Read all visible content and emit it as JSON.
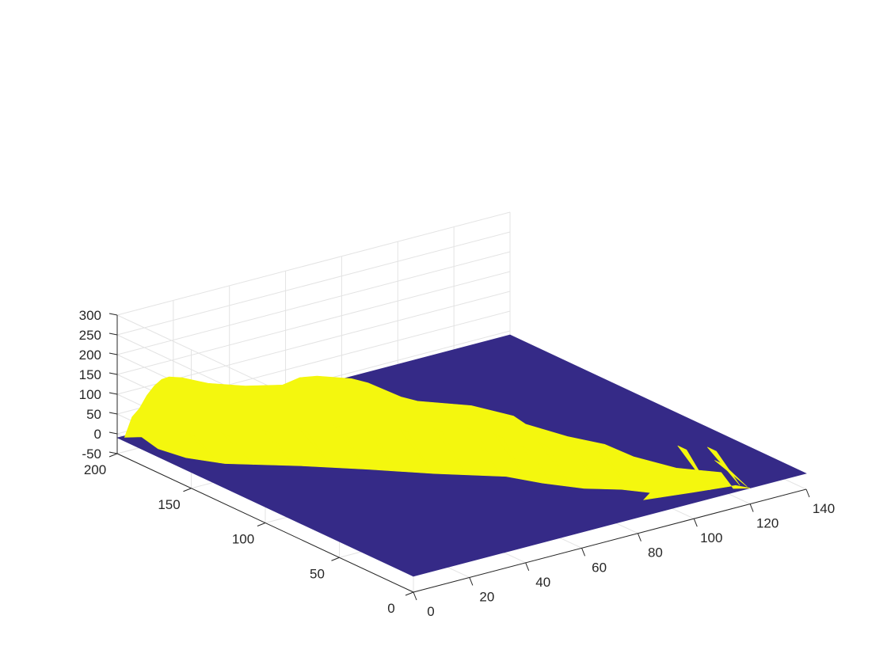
{
  "chart_data": {
    "type": "surface",
    "title": "",
    "xlabel": "",
    "ylabel": "",
    "zlabel": "",
    "xlim": [
      0,
      140
    ],
    "ylim": [
      0,
      200
    ],
    "zlim": [
      -50,
      300
    ],
    "x_ticks": [
      0,
      20,
      40,
      60,
      80,
      100,
      120,
      140
    ],
    "y_ticks": [
      0,
      50,
      100,
      150,
      200
    ],
    "z_ticks": [
      -50,
      0,
      50,
      100,
      150,
      200,
      250,
      300
    ],
    "grid": true,
    "base_level": -10,
    "colors": {
      "base": "#352a87",
      "surface": "#f4f70e",
      "grid": "#e3e3e3",
      "axis": "#262626"
    },
    "surface": {
      "profile_along_y": [
        {
          "y": 0,
          "top": 0
        },
        {
          "y": 5,
          "top": 35
        },
        {
          "y": 10,
          "top": 62
        },
        {
          "y": 20,
          "top": 92
        },
        {
          "y": 30,
          "top": 115
        },
        {
          "y": 40,
          "top": 132
        },
        {
          "y": 55,
          "top": 150
        },
        {
          "y": 60,
          "top": 165
        },
        {
          "y": 75,
          "top": 178
        },
        {
          "y": 90,
          "top": 184
        },
        {
          "y": 95,
          "top": 192
        },
        {
          "y": 105,
          "top": 222
        },
        {
          "y": 110,
          "top": 230
        },
        {
          "y": 120,
          "top": 232
        },
        {
          "y": 125,
          "top": 226
        },
        {
          "y": 130,
          "top": 205
        },
        {
          "y": 140,
          "top": 200
        },
        {
          "y": 150,
          "top": 204
        },
        {
          "y": 160,
          "top": 208
        },
        {
          "y": 165,
          "top": 205
        },
        {
          "y": 170,
          "top": 190
        },
        {
          "y": 175,
          "top": 165
        },
        {
          "y": 180,
          "top": 132
        },
        {
          "y": 185,
          "top": 90
        },
        {
          "y": 190,
          "top": 60
        },
        {
          "y": 195,
          "top": 0
        }
      ],
      "bottom_x": [
        {
          "y": 0,
          "x": 120
        },
        {
          "y": 6,
          "x": 118
        },
        {
          "y": 10,
          "x": 105
        },
        {
          "y": 15,
          "x": 90
        },
        {
          "y": 20,
          "x": 95
        },
        {
          "y": 30,
          "x": 90
        },
        {
          "y": 40,
          "x": 82
        },
        {
          "y": 55,
          "x": 75
        },
        {
          "y": 70,
          "x": 70
        },
        {
          "y": 90,
          "x": 55
        },
        {
          "y": 110,
          "x": 42
        },
        {
          "y": 130,
          "x": 28
        },
        {
          "y": 150,
          "x": 12
        },
        {
          "y": 165,
          "x": 6
        },
        {
          "y": 180,
          "x": 4
        },
        {
          "y": 195,
          "x": 6
        }
      ],
      "front_spikes": [
        {
          "y": 2,
          "x": 120,
          "top": 30
        },
        {
          "y": 5,
          "x": 119,
          "top": 60
        },
        {
          "y": 8,
          "x": 110,
          "top": 75
        },
        {
          "y": 13,
          "x": 95,
          "top": 40
        },
        {
          "y": 22,
          "x": 96,
          "top": 65
        },
        {
          "y": 28,
          "x": 92,
          "top": 60
        },
        {
          "y": 36,
          "x": 86,
          "top": 70
        },
        {
          "y": 45,
          "x": 80,
          "top": 75
        },
        {
          "y": 52,
          "x": 77,
          "top": 60
        },
        {
          "y": 62,
          "x": 73,
          "top": 80
        },
        {
          "y": 72,
          "x": 69,
          "top": 85
        },
        {
          "y": 82,
          "x": 62,
          "top": 80
        },
        {
          "y": 92,
          "x": 55,
          "top": 75
        },
        {
          "y": 102,
          "x": 48,
          "top": 70
        },
        {
          "y": 112,
          "x": 42,
          "top": 75
        },
        {
          "y": 122,
          "x": 35,
          "top": 60
        },
        {
          "y": 132,
          "x": 27,
          "top": 55
        },
        {
          "y": 142,
          "x": 18,
          "top": 45
        },
        {
          "y": 152,
          "x": 11,
          "top": 40
        }
      ]
    }
  }
}
